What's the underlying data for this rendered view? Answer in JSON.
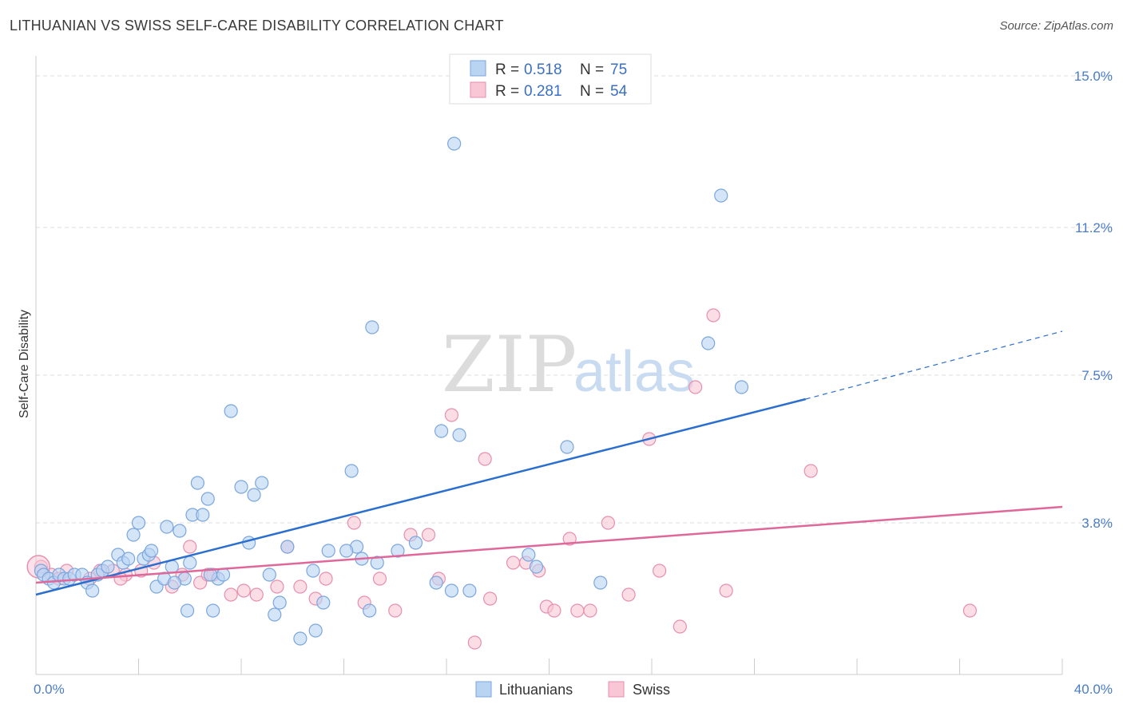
{
  "title": "LITHUANIAN VS SWISS SELF-CARE DISABILITY CORRELATION CHART",
  "source": "Source: ZipAtlas.com",
  "watermark": {
    "zip": "ZIP",
    "atlas": "atlas"
  },
  "colors": {
    "lithuanians_fill": "#b9d3f3",
    "lithuanians_stroke": "#7aa6de",
    "lithuanians_line": "#2a6fd0",
    "swiss_fill": "#f8c6d5",
    "swiss_stroke": "#e68fae",
    "swiss_line": "#e0679a",
    "grid": "#dddddd",
    "tick_text": "#4a7cc9"
  },
  "legend": {
    "rows": [
      {
        "r_label": "R = ",
        "r_value": "0.518",
        "n_label": "N = ",
        "n_value": "75"
      },
      {
        "r_label": "R = ",
        "r_value": "0.281",
        "n_label": "N = ",
        "n_value": "54"
      }
    ]
  },
  "chart_data": {
    "type": "scatter",
    "title": "LITHUANIAN VS SWISS SELF-CARE DISABILITY CORRELATION CHART",
    "xlabel": "",
    "ylabel": "Self-Care Disability",
    "xlim": [
      0,
      40
    ],
    "ylim": [
      0,
      15.5
    ],
    "x_tick_labels": [
      "0.0%",
      "40.0%"
    ],
    "y_ticks": [
      3.8,
      7.5,
      11.2,
      15.0
    ],
    "y_tick_labels": [
      "3.8%",
      "7.5%",
      "11.2%",
      "15.0%"
    ],
    "grid": true,
    "legend_position": "top-center",
    "series": [
      {
        "name": "Lithuanians",
        "R": 0.518,
        "N": 75,
        "trend": {
          "x0": 0,
          "y0": 2.0,
          "x1": 30.0,
          "y1": 6.9,
          "dashed_to_x": 40,
          "dashed_to_y": 8.6
        },
        "points": [
          [
            0.2,
            2.6
          ],
          [
            0.3,
            2.5
          ],
          [
            0.5,
            2.4
          ],
          [
            0.7,
            2.3
          ],
          [
            0.9,
            2.5
          ],
          [
            1.1,
            2.4
          ],
          [
            1.3,
            2.4
          ],
          [
            1.5,
            2.5
          ],
          [
            1.8,
            2.5
          ],
          [
            2.0,
            2.3
          ],
          [
            2.2,
            2.1
          ],
          [
            2.4,
            2.5
          ],
          [
            2.6,
            2.6
          ],
          [
            2.8,
            2.7
          ],
          [
            3.2,
            3.0
          ],
          [
            3.4,
            2.8
          ],
          [
            3.6,
            2.9
          ],
          [
            3.8,
            3.5
          ],
          [
            4.0,
            3.8
          ],
          [
            4.2,
            2.9
          ],
          [
            4.4,
            3.0
          ],
          [
            4.5,
            3.1
          ],
          [
            4.7,
            2.2
          ],
          [
            5.0,
            2.4
          ],
          [
            5.1,
            3.7
          ],
          [
            5.3,
            2.7
          ],
          [
            5.6,
            3.6
          ],
          [
            5.8,
            2.4
          ],
          [
            5.9,
            1.6
          ],
          [
            6.0,
            2.8
          ],
          [
            6.1,
            4.0
          ],
          [
            6.3,
            4.8
          ],
          [
            6.5,
            4.0
          ],
          [
            6.7,
            4.4
          ],
          [
            6.9,
            1.6
          ],
          [
            7.1,
            2.4
          ],
          [
            7.3,
            2.5
          ],
          [
            7.6,
            6.6
          ],
          [
            8.0,
            4.7
          ],
          [
            8.3,
            3.3
          ],
          [
            8.5,
            4.5
          ],
          [
            8.8,
            4.8
          ],
          [
            9.1,
            2.5
          ],
          [
            9.3,
            1.5
          ],
          [
            9.5,
            1.8
          ],
          [
            9.8,
            3.2
          ],
          [
            10.3,
            0.9
          ],
          [
            10.8,
            2.6
          ],
          [
            11.2,
            1.8
          ],
          [
            11.4,
            3.1
          ],
          [
            12.3,
            5.1
          ],
          [
            12.5,
            3.2
          ],
          [
            12.7,
            2.9
          ],
          [
            13.0,
            1.6
          ],
          [
            13.1,
            8.7
          ],
          [
            13.3,
            2.8
          ],
          [
            14.1,
            3.1
          ],
          [
            14.8,
            3.3
          ],
          [
            15.6,
            2.3
          ],
          [
            16.2,
            2.1
          ],
          [
            16.3,
            13.3
          ],
          [
            16.9,
            2.1
          ],
          [
            19.2,
            3.0
          ],
          [
            19.5,
            2.7
          ],
          [
            20.7,
            5.7
          ],
          [
            22.0,
            2.3
          ],
          [
            26.2,
            8.3
          ],
          [
            26.7,
            12.0
          ],
          [
            27.5,
            7.2
          ],
          [
            15.8,
            6.1
          ],
          [
            10.9,
            1.1
          ],
          [
            6.8,
            2.5
          ],
          [
            5.4,
            2.3
          ],
          [
            12.1,
            3.1
          ],
          [
            16.5,
            6.0
          ]
        ]
      },
      {
        "name": "Swiss",
        "R": 0.281,
        "N": 54,
        "trend": {
          "x0": 0,
          "y0": 2.3,
          "x1": 40,
          "y1": 4.2
        },
        "points": [
          [
            0.2,
            2.7
          ],
          [
            0.6,
            2.5
          ],
          [
            0.9,
            2.4
          ],
          [
            1.2,
            2.6
          ],
          [
            2.1,
            2.4
          ],
          [
            2.5,
            2.6
          ],
          [
            3.0,
            2.6
          ],
          [
            3.5,
            2.5
          ],
          [
            4.1,
            2.6
          ],
          [
            4.6,
            2.8
          ],
          [
            5.3,
            2.2
          ],
          [
            5.7,
            2.5
          ],
          [
            6.0,
            3.2
          ],
          [
            6.4,
            2.3
          ],
          [
            6.9,
            2.5
          ],
          [
            7.6,
            2.0
          ],
          [
            8.1,
            2.1
          ],
          [
            8.6,
            2.0
          ],
          [
            9.4,
            2.2
          ],
          [
            9.8,
            3.2
          ],
          [
            10.3,
            2.2
          ],
          [
            10.9,
            1.9
          ],
          [
            11.3,
            2.4
          ],
          [
            12.4,
            3.8
          ],
          [
            12.8,
            1.8
          ],
          [
            13.4,
            2.4
          ],
          [
            14.0,
            1.6
          ],
          [
            14.6,
            3.5
          ],
          [
            15.3,
            3.5
          ],
          [
            15.7,
            2.4
          ],
          [
            16.2,
            6.5
          ],
          [
            17.1,
            0.8
          ],
          [
            17.5,
            5.4
          ],
          [
            17.7,
            1.9
          ],
          [
            18.6,
            2.8
          ],
          [
            19.1,
            2.8
          ],
          [
            19.6,
            2.6
          ],
          [
            19.9,
            1.7
          ],
          [
            20.2,
            1.6
          ],
          [
            20.8,
            3.4
          ],
          [
            21.1,
            1.6
          ],
          [
            21.6,
            1.6
          ],
          [
            22.3,
            3.8
          ],
          [
            23.1,
            2.0
          ],
          [
            23.9,
            5.9
          ],
          [
            24.3,
            2.6
          ],
          [
            25.1,
            1.2
          ],
          [
            25.7,
            7.2
          ],
          [
            26.4,
            9.0
          ],
          [
            26.9,
            2.1
          ],
          [
            30.2,
            5.1
          ],
          [
            36.4,
            1.6
          ],
          [
            3.3,
            2.4
          ],
          [
            6.7,
            2.5
          ]
        ]
      }
    ]
  },
  "bottom_legend": [
    {
      "label": "Lithuanians"
    },
    {
      "label": "Swiss"
    }
  ]
}
